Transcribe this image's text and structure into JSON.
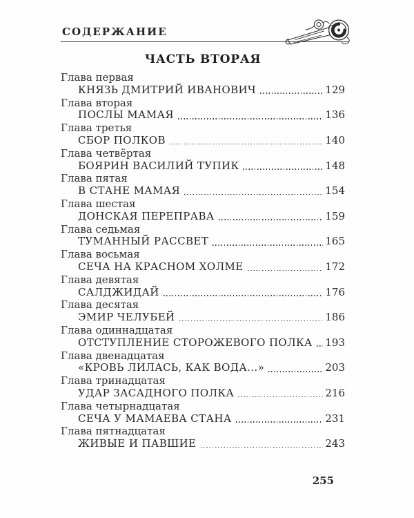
{
  "page": {
    "running_head": "СОДЕРЖАНИЕ",
    "part_title": "ЧАСТЬ ВТОРАЯ",
    "folio": "255"
  },
  "ornament": {
    "name": "engraved-scroll-flourish",
    "ink_color": "#2a2a2a"
  },
  "toc": {
    "entries": [
      {
        "chapter": "Глава первая",
        "title": "КНЯЗЬ ДМИТРИЙ ИВАНОВИЧ",
        "page": "129"
      },
      {
        "chapter": "Глава вторая",
        "title": "ПОСЛЫ МАМАЯ",
        "page": "136"
      },
      {
        "chapter": "Глава третья",
        "title": "СБОР ПОЛКОВ",
        "page": "140"
      },
      {
        "chapter": "Глава четвёртая",
        "title": "БОЯРИН ВАСИЛИЙ ТУПИК",
        "page": "148"
      },
      {
        "chapter": "Глава пятая",
        "title": "В СТАНЕ МАМАЯ",
        "page": "154"
      },
      {
        "chapter": "Глава шестая",
        "title": "ДОНСКАЯ ПЕРЕПРАВА",
        "page": "159"
      },
      {
        "chapter": "Глава седьмая",
        "title": "ТУМАННЫЙ РАССВЕТ",
        "page": "165"
      },
      {
        "chapter": "Глава восьмая",
        "title": "СЕЧА НА КРАСНОМ ХОЛМЕ",
        "page": "172"
      },
      {
        "chapter": "Глава девятая",
        "title": "САЛДЖИДАЙ",
        "page": "176"
      },
      {
        "chapter": "Глава десятая",
        "title": "ЭМИР ЧЕЛУБЕЙ",
        "page": "186"
      },
      {
        "chapter": "Глава одиннадцатая",
        "title": "ОТСТУПЛЕНИЕ СТОРОЖЕВОГО ПОЛКА",
        "page": "193"
      },
      {
        "chapter": "Глава двенадцатая",
        "title": "«КРОВЬ ЛИЛАСЬ, КАК ВОДА...»",
        "page": "203"
      },
      {
        "chapter": "Глава тринадцатая",
        "title": "УДАР ЗАСАДНОГО ПОЛКА",
        "page": "216"
      },
      {
        "chapter": "Глава четырнадцатая",
        "title": "СЕЧА У МАМАЕВА СТАНА",
        "page": "231"
      },
      {
        "chapter": "Глава пятнадцатая",
        "title": "ЖИВЫЕ И ПАВШИЕ",
        "page": "243"
      }
    ]
  }
}
